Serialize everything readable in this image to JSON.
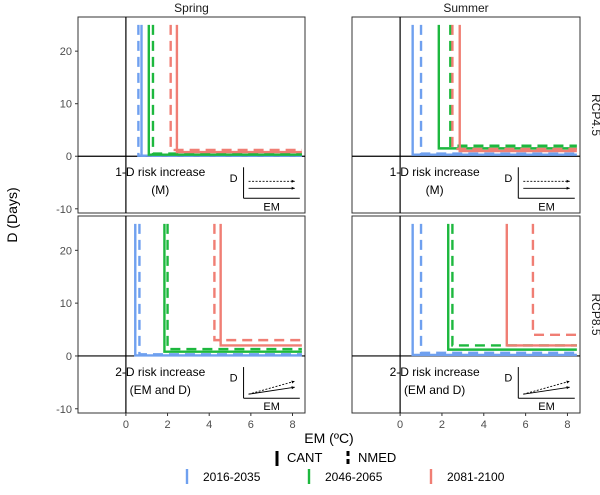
{
  "chart_data": {
    "type": "line",
    "ylabel": "D (Days)",
    "xlabel": "EM (ºC)",
    "xlim": [
      -2.3,
      8.6
    ],
    "ylim": [
      -10.8,
      26.5
    ],
    "x_ticks": [
      0,
      2,
      4,
      6,
      8
    ],
    "y_ticks": [
      -10,
      0,
      10,
      20
    ],
    "columns": [
      "Spring",
      "Summer"
    ],
    "rows": [
      "RCP4.5",
      "RCP8.5"
    ],
    "grid": false,
    "legend_position": "bottom",
    "linetype_legend": {
      "items": [
        {
          "label": "CANT",
          "style": "solid"
        },
        {
          "label": "NMED",
          "style": "dashed"
        }
      ]
    },
    "color_legend": {
      "items": [
        {
          "label": "2016-2035",
          "color": "#6fa0ef"
        },
        {
          "label": "2046-2065",
          "color": "#1db83e"
        },
        {
          "label": "2081-2100",
          "color": "#f07e74"
        }
      ]
    },
    "panels": [
      {
        "column": "Spring",
        "row": "RCP4.5",
        "annotation": [
          "1-D risk increase",
          "(M)"
        ],
        "inset": {
          "ylabel": "D",
          "xlabel": "EM",
          "mode": "flat"
        },
        "series": [
          {
            "period": "2016-2035",
            "scenario": "NMED",
            "vx": 0.6,
            "hy": 0.1
          },
          {
            "period": "2016-2035",
            "scenario": "CANT",
            "vx": 0.75,
            "hy": 0.1
          },
          {
            "period": "2046-2065",
            "scenario": "CANT",
            "vx": 1.1,
            "hy": 0.3
          },
          {
            "period": "2046-2065",
            "scenario": "NMED",
            "vx": 1.3,
            "hy": 0.5
          },
          {
            "period": "2081-2100",
            "scenario": "NMED",
            "vx": 2.15,
            "hy": 1.2
          },
          {
            "period": "2081-2100",
            "scenario": "CANT",
            "vx": 2.45,
            "hy": 0.8
          }
        ]
      },
      {
        "column": "Summer",
        "row": "RCP4.5",
        "annotation": [
          "1-D risk increase",
          "(M)"
        ],
        "inset": {
          "ylabel": "D",
          "xlabel": "EM",
          "mode": "flat"
        },
        "series": [
          {
            "period": "2016-2035",
            "scenario": "CANT",
            "vx": 0.6,
            "hy": 0.3
          },
          {
            "period": "2016-2035",
            "scenario": "NMED",
            "vx": 1.0,
            "hy": 0.5
          },
          {
            "period": "2046-2065",
            "scenario": "CANT",
            "vx": 1.85,
            "hy": 1.5
          },
          {
            "period": "2046-2065",
            "scenario": "NMED",
            "vx": 2.4,
            "hy": 2.0
          },
          {
            "period": "2081-2100",
            "scenario": "NMED",
            "vx": 2.5,
            "hy": 1.4
          },
          {
            "period": "2081-2100",
            "scenario": "CANT",
            "vx": 2.85,
            "hy": 1.0
          }
        ]
      },
      {
        "column": "Spring",
        "row": "RCP8.5",
        "annotation": [
          "2-D risk increase",
          "(EM and D)"
        ],
        "inset": {
          "ylabel": "D",
          "xlabel": "EM",
          "mode": "rising"
        },
        "series": [
          {
            "period": "2016-2035",
            "scenario": "CANT",
            "vx": 0.45,
            "hy": 0.1
          },
          {
            "period": "2016-2035",
            "scenario": "NMED",
            "vx": 0.65,
            "hy": 0.3
          },
          {
            "period": "2046-2065",
            "scenario": "CANT",
            "vx": 1.85,
            "hy": 0.8
          },
          {
            "period": "2046-2065",
            "scenario": "NMED",
            "vx": 2.0,
            "hy": 1.3
          },
          {
            "period": "2081-2100",
            "scenario": "NMED",
            "vx": 4.25,
            "hy": 3.0
          },
          {
            "period": "2081-2100",
            "scenario": "CANT",
            "vx": 4.55,
            "hy": 2.0
          }
        ]
      },
      {
        "column": "Summer",
        "row": "RCP8.5",
        "annotation": [
          "2-D risk increase",
          "(EM and D)"
        ],
        "inset": {
          "ylabel": "D",
          "xlabel": "EM",
          "mode": "rising"
        },
        "series": [
          {
            "period": "2016-2035",
            "scenario": "CANT",
            "vx": 0.6,
            "hy": 0.2
          },
          {
            "period": "2016-2035",
            "scenario": "NMED",
            "vx": 1.0,
            "hy": 0.6
          },
          {
            "period": "2046-2065",
            "scenario": "CANT",
            "vx": 2.3,
            "hy": 1.2
          },
          {
            "period": "2046-2065",
            "scenario": "NMED",
            "vx": 2.5,
            "hy": 2.0
          },
          {
            "period": "2081-2100",
            "scenario": "CANT",
            "vx": 5.1,
            "hy": 2.0
          },
          {
            "period": "2081-2100",
            "scenario": "NMED",
            "vx": 6.35,
            "hy": 4.0
          }
        ]
      }
    ]
  }
}
